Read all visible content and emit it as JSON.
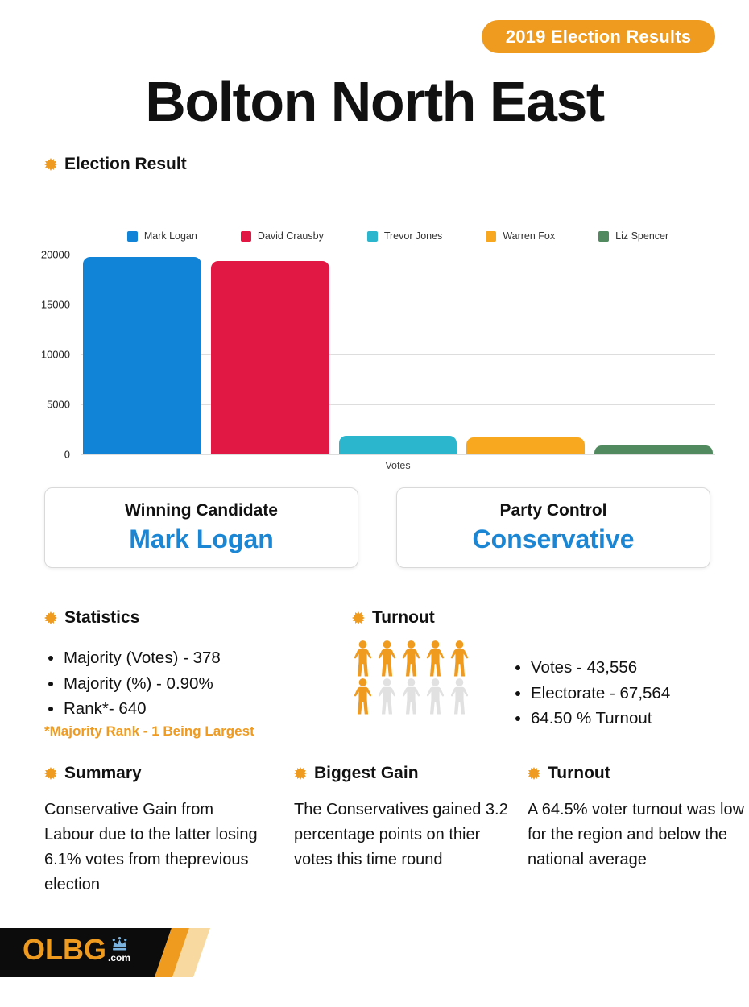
{
  "badge": {
    "label": "2019 Election Results"
  },
  "title": "Bolton North East",
  "election_result": {
    "heading": "Election Result"
  },
  "chart_data": {
    "type": "bar",
    "categories": [
      "Mark Logan",
      "David Crausby",
      "Trevor Jones",
      "Warren Fox",
      "Liz Spencer"
    ],
    "values": [
      19759,
      19381,
      1880,
      1668,
      868
    ],
    "colors": [
      "#1184d8",
      "#e11744",
      "#2bb6ce",
      "#f7a81e",
      "#528a60"
    ],
    "title": "",
    "xlabel": "Votes",
    "ylabel": "",
    "ylim": [
      0,
      20000
    ],
    "yticks": [
      0,
      5000,
      10000,
      15000,
      20000
    ],
    "grid": true,
    "legend_position": "top"
  },
  "cards": {
    "winning_candidate": {
      "label": "Winning Candidate",
      "value": "Mark Logan"
    },
    "party_control": {
      "label": "Party Control",
      "value": "Conservative"
    }
  },
  "statistics": {
    "heading": "Statistics",
    "items": [
      "Majority (Votes) - 378",
      "Majority (%) - 0.90%",
      "Rank*- 640"
    ],
    "footnote": "*Majority Rank - 1 Being Largest"
  },
  "turnout": {
    "heading": "Turnout",
    "items": [
      "Votes - 43,556",
      "Electorate - 67,564",
      "64.50 % Turnout"
    ],
    "pictogram": {
      "total": 10,
      "filled": 6,
      "filled_color": "#ef9b20",
      "empty_color": "#e1e1e1"
    }
  },
  "summary": {
    "heading": "Summary",
    "text": "Conservative Gain from Labour due to the latter losing 6.1% votes from theprevious election"
  },
  "biggest_gain": {
    "heading": "Biggest Gain",
    "text": "The Conservatives gained 3.2 percentage points on thier votes this time round"
  },
  "turnout_note": {
    "heading": "Turnout",
    "text": "A 64.5% voter turnout was low for the region and below the national average"
  },
  "footer": {
    "brand": "OLBG",
    "brand_suffix": ".com"
  },
  "colors": {
    "accent_orange": "#ef9b20",
    "tan_stripe": "#f8d9a0",
    "value_blue": "#1b86d4",
    "text_black": "#111111",
    "crown_blue": "#7ab3e0",
    "gridline": "#dddddd"
  }
}
